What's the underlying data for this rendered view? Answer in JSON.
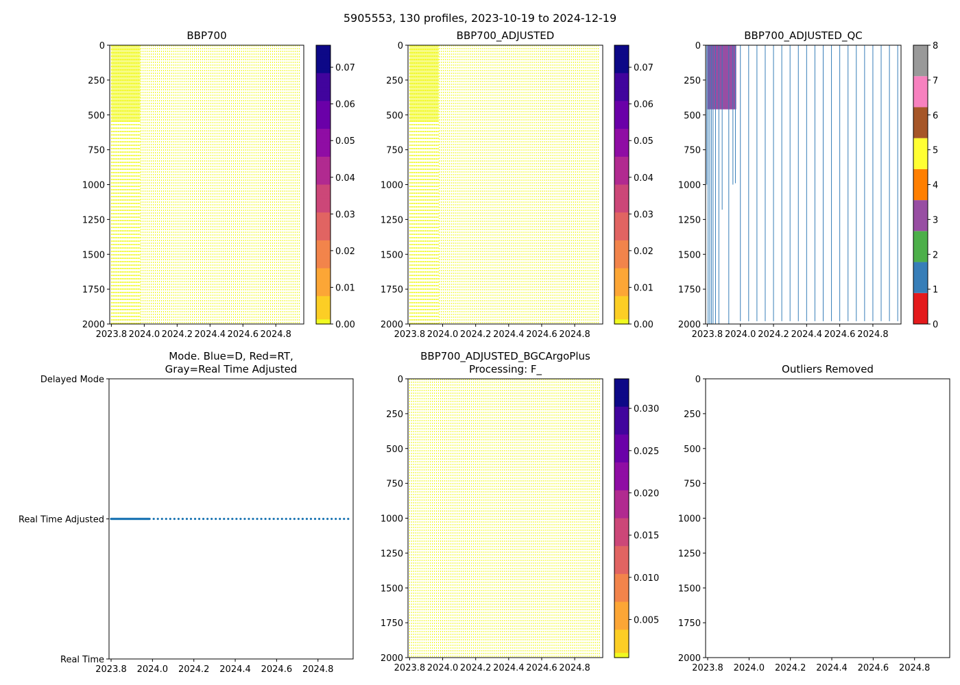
{
  "figure": {
    "suptitle": "5905553, 130 profiles, 2023-10-19 to 2024-12-19"
  },
  "chart_data": [
    {
      "id": "bbp700",
      "type": "heatmap",
      "title": "BBP700",
      "xlim": [
        2023.79,
        2024.97
      ],
      "ylim": [
        2000,
        0
      ],
      "xticks": [
        2023.8,
        2024.0,
        2024.2,
        2024.4,
        2024.6,
        2024.8
      ],
      "xtick_labels": [
        "2023.8",
        "2024.0",
        "2024.2",
        "2024.4",
        "2024.6",
        "2024.8"
      ],
      "yticks": [
        0,
        250,
        500,
        750,
        1000,
        1250,
        1500,
        1750,
        2000
      ],
      "ytick_labels": [
        "0",
        "250",
        "500",
        "750",
        "1000",
        "1250",
        "1500",
        "1750",
        "2000"
      ],
      "colorbar": {
        "cmap": "plasma_r",
        "range": [
          0,
          0.076
        ],
        "ticks": [
          0,
          0.01,
          0.02,
          0.03,
          0.04,
          0.05,
          0.06,
          0.07
        ],
        "tick_labels": [
          "0.00",
          "0.01",
          "0.02",
          "0.03",
          "0.04",
          "0.05",
          "0.06",
          "0.07"
        ]
      },
      "dense_profiles": {
        "t_start": 2023.8,
        "t_end": 2023.975,
        "step": 0.006,
        "max_depth": 2000,
        "dense_depth": 550
      },
      "sparse_profiles": {
        "t_start": 2023.98,
        "t_end": 2024.95,
        "step": 0.0125,
        "max_depth": 2000
      }
    },
    {
      "id": "bbp700-adjusted",
      "type": "heatmap",
      "title": "BBP700_ADJUSTED",
      "xlim": [
        2023.79,
        2024.97
      ],
      "ylim": [
        2000,
        0
      ],
      "xticks": [
        2023.8,
        2024.0,
        2024.2,
        2024.4,
        2024.6,
        2024.8
      ],
      "xtick_labels": [
        "2023.8",
        "2024.0",
        "2024.2",
        "2024.4",
        "2024.6",
        "2024.8"
      ],
      "yticks": [
        0,
        250,
        500,
        750,
        1000,
        1250,
        1500,
        1750,
        2000
      ],
      "ytick_labels": [
        "0",
        "250",
        "500",
        "750",
        "1000",
        "1250",
        "1500",
        "1750",
        "2000"
      ],
      "colorbar": {
        "cmap": "plasma_r",
        "range": [
          0,
          0.076
        ],
        "ticks": [
          0,
          0.01,
          0.02,
          0.03,
          0.04,
          0.05,
          0.06,
          0.07
        ],
        "tick_labels": [
          "0.00",
          "0.01",
          "0.02",
          "0.03",
          "0.04",
          "0.05",
          "0.06",
          "0.07"
        ]
      },
      "dense_profiles": {
        "t_start": 2023.8,
        "t_end": 2023.975,
        "step": 0.006,
        "max_depth": 2000,
        "dense_depth": 550
      },
      "sparse_profiles": {
        "t_start": 2023.98,
        "t_end": 2024.95,
        "step": 0.0125,
        "max_depth": 2000
      }
    },
    {
      "id": "bbp700-adjusted-qc",
      "type": "heatmap",
      "title": "BBP700_ADJUSTED_QC",
      "xlim": [
        2023.79,
        2024.97
      ],
      "ylim": [
        2000,
        0
      ],
      "xticks": [
        2023.8,
        2024.0,
        2024.2,
        2024.4,
        2024.6,
        2024.8
      ],
      "xtick_labels": [
        "2023.8",
        "2024.0",
        "2024.2",
        "2024.4",
        "2024.6",
        "2024.8"
      ],
      "yticks": [
        0,
        250,
        500,
        750,
        1000,
        1250,
        1500,
        1750,
        2000
      ],
      "ytick_labels": [
        "0",
        "250",
        "500",
        "750",
        "1000",
        "1250",
        "1500",
        "1750",
        "2000"
      ],
      "colorbar": {
        "type": "categorical",
        "range": [
          0,
          8
        ],
        "ticks": [
          0,
          1,
          2,
          3,
          4,
          5,
          6,
          7,
          8
        ],
        "tick_labels": [
          "0",
          "1",
          "2",
          "3",
          "4",
          "5",
          "6",
          "7",
          "8"
        ],
        "colors": [
          "#e41a1c",
          "#377eb8",
          "#4daf4a",
          "#984ea3",
          "#ff7f00",
          "#ffff33",
          "#a65628",
          "#f781bf",
          "#999999"
        ]
      },
      "qc3_block": {
        "t_start": 2023.8,
        "t_end": 2023.975,
        "depth_top": 0,
        "depth_bottom": 460,
        "value": 3
      },
      "qc1_profiles": [
        {
          "t": 2023.797,
          "depth": 1000
        },
        {
          "t": 2023.805,
          "depth": 2000
        },
        {
          "t": 2023.815,
          "depth": 2000
        },
        {
          "t": 2023.825,
          "depth": 2000
        },
        {
          "t": 2023.835,
          "depth": 2000
        },
        {
          "t": 2023.85,
          "depth": 2000
        },
        {
          "t": 2023.87,
          "depth": 2000
        },
        {
          "t": 2023.89,
          "depth": 1180
        },
        {
          "t": 2023.93,
          "depth": 2000
        },
        {
          "t": 2023.955,
          "depth": 1000
        },
        {
          "t": 2023.97,
          "depth": 990
        }
      ],
      "sparse_profiles": {
        "t_start": 2024.0,
        "t_end": 2024.95,
        "step": 0.05,
        "max_depth": 1980,
        "value": 1
      }
    },
    {
      "id": "mode",
      "type": "scatter",
      "title_lines": [
        "Mode. Blue=D, Red=RT,",
        "Gray=Real Time Adjusted"
      ],
      "xlim": [
        2023.79,
        2024.97
      ],
      "xticks": [
        2023.8,
        2024.0,
        2024.2,
        2024.4,
        2024.6,
        2024.8
      ],
      "xtick_labels": [
        "2023.8",
        "2024.0",
        "2024.2",
        "2024.4",
        "2024.6",
        "2024.8"
      ],
      "yticks": [
        2,
        1,
        0
      ],
      "ytick_labels": [
        "Delayed Mode",
        "Real Time Adjusted",
        "Real Time"
      ],
      "ylim": [
        0,
        2
      ],
      "series": [
        {
          "name": "Real Time Adjusted",
          "value": 1,
          "dense_until": 2023.985,
          "t_start": 2023.8,
          "t_end": 2024.96,
          "dense_step": 0.002,
          "sparse_step": 0.02
        }
      ]
    },
    {
      "id": "bgcargoplus",
      "type": "heatmap",
      "title_lines": [
        "BBP700_ADJUSTED_BGCArgoPlus",
        "Processing: F_"
      ],
      "xlim": [
        2023.79,
        2024.97
      ],
      "ylim": [
        2000,
        0
      ],
      "xticks": [
        2023.8,
        2024.0,
        2024.2,
        2024.4,
        2024.6,
        2024.8
      ],
      "xtick_labels": [
        "2023.8",
        "2024.0",
        "2024.2",
        "2024.4",
        "2024.6",
        "2024.8"
      ],
      "yticks": [
        0,
        250,
        500,
        750,
        1000,
        1250,
        1500,
        1750,
        2000
      ],
      "ytick_labels": [
        "0",
        "250",
        "500",
        "750",
        "1000",
        "1250",
        "1500",
        "1750",
        "2000"
      ],
      "colorbar": {
        "cmap": "plasma_r",
        "range": [
          0.0005,
          0.0335
        ],
        "ticks": [
          0.005,
          0.01,
          0.015,
          0.02,
          0.025,
          0.03
        ],
        "tick_labels": [
          "0.005",
          "0.010",
          "0.015",
          "0.020",
          "0.025",
          "0.030"
        ]
      },
      "sparse_profiles": {
        "t_start": 2023.8,
        "t_end": 2024.95,
        "step": 0.0125,
        "max_depth": 2000
      }
    },
    {
      "id": "outliers",
      "type": "scatter",
      "title": "Outliers Removed",
      "xlim": [
        2023.79,
        2024.97
      ],
      "ylim": [
        2000,
        0
      ],
      "xticks": [
        2023.8,
        2024.0,
        2024.2,
        2024.4,
        2024.6,
        2024.8
      ],
      "xtick_labels": [
        "2023.8",
        "2024.0",
        "2024.2",
        "2024.4",
        "2024.6",
        "2024.8"
      ],
      "yticks": [
        0,
        250,
        500,
        750,
        1000,
        1250,
        1500,
        1750,
        2000
      ],
      "ytick_labels": [
        "0",
        "250",
        "500",
        "750",
        "1000",
        "1250",
        "1500",
        "1750",
        "2000"
      ],
      "series": []
    }
  ]
}
